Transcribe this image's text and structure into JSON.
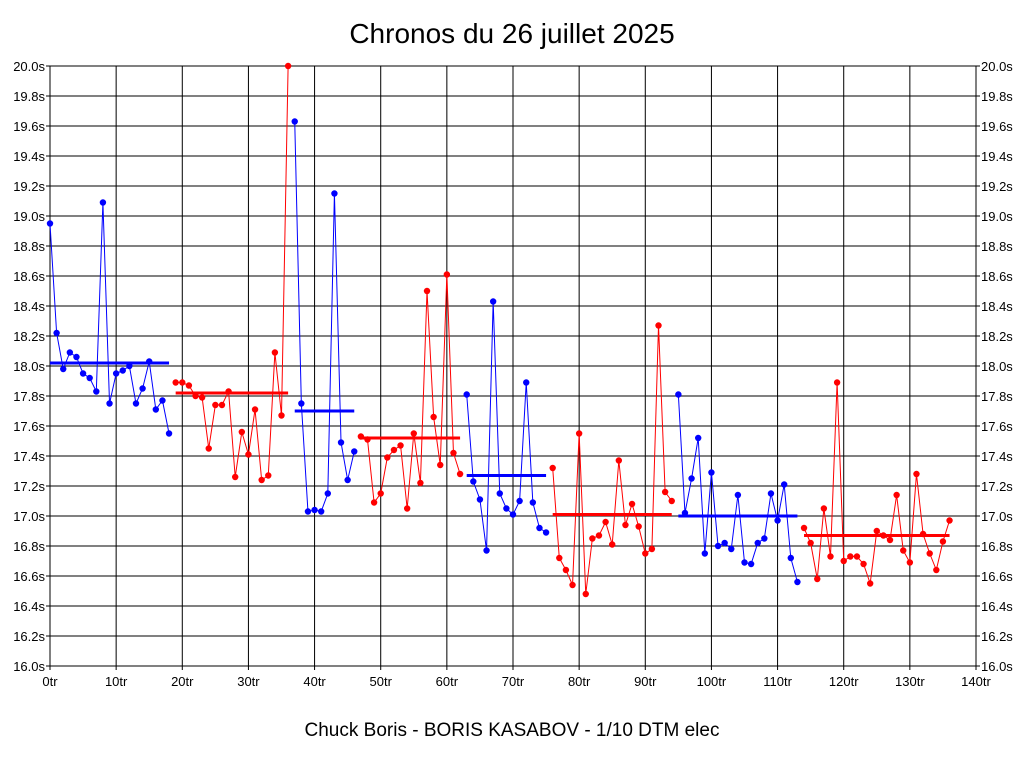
{
  "chart_data": {
    "type": "line",
    "title": "Chronos du 26 juillet 2025",
    "footer": "Chuck Boris - BORIS KASABOV - 1/10 DTM elec",
    "xlim": [
      0,
      140
    ],
    "ylim": [
      16.0,
      20.0
    ],
    "x_ticks": [
      0,
      10,
      20,
      30,
      40,
      50,
      60,
      70,
      80,
      90,
      100,
      110,
      120,
      130,
      140
    ],
    "x_tick_labels": [
      "0tr",
      "10tr",
      "20tr",
      "30tr",
      "40tr",
      "50tr",
      "60tr",
      "70tr",
      "80tr",
      "90tr",
      "100tr",
      "110tr",
      "120tr",
      "130tr",
      "140tr"
    ],
    "y_ticks": [
      16.0,
      16.2,
      16.4,
      16.6,
      16.8,
      17.0,
      17.2,
      17.4,
      17.6,
      17.8,
      18.0,
      18.2,
      18.4,
      18.6,
      18.8,
      19.0,
      19.2,
      19.4,
      19.6,
      19.8,
      20.0
    ],
    "y_tick_labels": [
      "16.0s",
      "16.2s",
      "16.4s",
      "16.6s",
      "16.8s",
      "17.0s",
      "17.2s",
      "17.4s",
      "17.6s",
      "17.8s",
      "18.0s",
      "18.2s",
      "18.4s",
      "18.6s",
      "18.8s",
      "19.0s",
      "19.2s",
      "19.4s",
      "19.6s",
      "19.8s",
      "20.0s"
    ],
    "grid": true,
    "series": [
      {
        "color": "#0000ff",
        "x": [
          0,
          1,
          2,
          3,
          4,
          5,
          6,
          7,
          8,
          9,
          10,
          11,
          12,
          13,
          14,
          15,
          16,
          17,
          18
        ],
        "y": [
          18.95,
          18.22,
          17.98,
          18.09,
          18.06,
          17.95,
          17.92,
          17.83,
          19.09,
          17.75,
          17.95,
          17.97,
          18.0,
          17.75,
          17.85,
          18.03,
          17.71,
          17.77,
          17.55
        ],
        "average": 18.02,
        "avg_range": [
          0,
          18
        ]
      },
      {
        "color": "#ff0000",
        "x": [
          19,
          20,
          21,
          22,
          23,
          24,
          25,
          26,
          27,
          28,
          29,
          30,
          31,
          32,
          33,
          34,
          35,
          36
        ],
        "y": [
          17.89,
          17.89,
          17.87,
          17.8,
          17.79,
          17.45,
          17.74,
          17.74,
          17.83,
          17.26,
          17.56,
          17.41,
          17.71,
          17.24,
          17.27,
          18.09,
          17.67,
          20.0
        ],
        "average": 17.82,
        "avg_range": [
          19,
          36
        ]
      },
      {
        "color": "#0000ff",
        "x": [
          37,
          38,
          39,
          40,
          41,
          42,
          43,
          44,
          45,
          46
        ],
        "y": [
          19.63,
          17.75,
          17.03,
          17.04,
          17.03,
          17.15,
          19.15,
          17.49,
          17.24,
          17.43
        ],
        "average": 17.7,
        "avg_range": [
          37,
          46
        ]
      },
      {
        "color": "#ff0000",
        "x": [
          47,
          48,
          49,
          50,
          51,
          52,
          53,
          54,
          55,
          56,
          57,
          58,
          59,
          60,
          61,
          62
        ],
        "y": [
          17.53,
          17.51,
          17.09,
          17.15,
          17.39,
          17.44,
          17.47,
          17.05,
          17.55,
          17.22,
          18.5,
          17.66,
          17.34,
          18.61,
          17.42,
          17.28
        ],
        "average": 17.52,
        "avg_range": [
          47,
          62
        ]
      },
      {
        "color": "#0000ff",
        "x": [
          63,
          64,
          65,
          66,
          67,
          68,
          69,
          70,
          71,
          72,
          73,
          74,
          75
        ],
        "y": [
          17.81,
          17.23,
          17.11,
          16.77,
          18.43,
          17.15,
          17.05,
          17.01,
          17.1,
          17.89,
          17.09,
          16.92,
          16.89
        ],
        "average": 17.27,
        "avg_range": [
          63,
          75
        ]
      },
      {
        "color": "#ff0000",
        "x": [
          76,
          77,
          78,
          79,
          80,
          81,
          82,
          83,
          84,
          85,
          86,
          87,
          88,
          89,
          90,
          91,
          92,
          93,
          94
        ],
        "y": [
          17.32,
          16.72,
          16.64,
          16.54,
          17.55,
          16.48,
          16.85,
          16.87,
          16.96,
          16.81,
          17.37,
          16.94,
          17.08,
          16.93,
          16.75,
          16.78,
          18.27,
          17.16,
          17.1
        ],
        "average": 17.01,
        "avg_range": [
          76,
          94
        ]
      },
      {
        "color": "#0000ff",
        "x": [
          95,
          96,
          97,
          98,
          99,
          100,
          101,
          102,
          103,
          104,
          105,
          106,
          107,
          108,
          109,
          110,
          111,
          112,
          113
        ],
        "y": [
          17.81,
          17.02,
          17.25,
          17.52,
          16.75,
          17.29,
          16.8,
          16.82,
          16.78,
          17.14,
          16.69,
          16.68,
          16.82,
          16.85,
          17.15,
          16.97,
          17.21,
          16.72,
          16.56
        ],
        "average": 17.0,
        "avg_range": [
          95,
          113
        ]
      },
      {
        "color": "#ff0000",
        "x": [
          114,
          115,
          116,
          117,
          118,
          119,
          120,
          121,
          122,
          123,
          124,
          125,
          126,
          127,
          128,
          129,
          130,
          131,
          132,
          133,
          134,
          135,
          136
        ],
        "y": [
          16.92,
          16.82,
          16.58,
          17.05,
          16.73,
          17.89,
          16.7,
          16.73,
          16.73,
          16.68,
          16.55,
          16.9,
          16.87,
          16.84,
          17.14,
          16.77,
          16.69,
          17.28,
          16.88,
          16.75,
          16.64,
          16.83,
          16.97
        ],
        "average": 16.87,
        "avg_range": [
          114,
          136
        ]
      }
    ]
  }
}
